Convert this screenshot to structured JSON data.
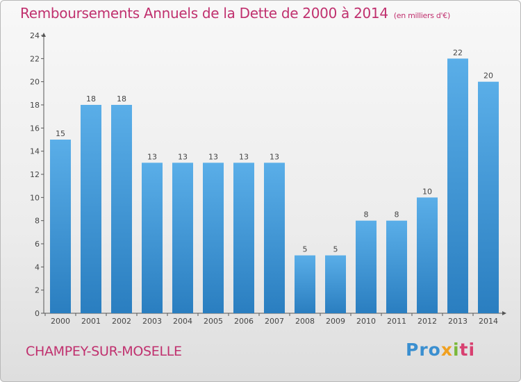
{
  "header": {
    "title": "Remboursements Annuels de la Dette de 2000 à 2014",
    "unit": "(en milliers d'€)"
  },
  "footer": {
    "commune": "CHAMPEY-SUR-MOSELLE",
    "logo": [
      "Pro",
      "x",
      "i",
      "ti"
    ]
  },
  "colors": {
    "title": "#c0306e",
    "bar_top": "#5aaee8",
    "bar_bottom": "#2a7ec0"
  },
  "chart_data": {
    "type": "bar",
    "title": "Remboursements Annuels de la Dette de 2000 à 2014",
    "xlabel": "",
    "ylabel": "",
    "categories": [
      "2000",
      "2001",
      "2002",
      "2003",
      "2004",
      "2005",
      "2006",
      "2007",
      "2008",
      "2009",
      "2010",
      "2011",
      "2012",
      "2013",
      "2014"
    ],
    "values": [
      15,
      18,
      18,
      13,
      13,
      13,
      13,
      13,
      5,
      5,
      8,
      8,
      10,
      22,
      20
    ],
    "ylim": [
      0,
      24
    ],
    "yticks": [
      0,
      2,
      4,
      6,
      8,
      10,
      12,
      14,
      16,
      18,
      20,
      22,
      24
    ],
    "grid": false,
    "data_labels": true
  }
}
